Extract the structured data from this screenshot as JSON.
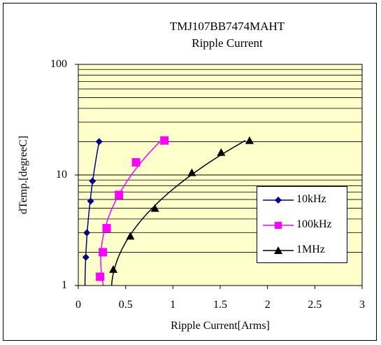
{
  "chart_data": {
    "type": "line",
    "title": "TMJ107BB7474MAHT",
    "subtitle": "Ripple Current",
    "xlabel": "Ripple Current[Arms]",
    "ylabel": "dTemp.[degreeC]",
    "xlim": [
      0,
      3
    ],
    "ylim": [
      1,
      100
    ],
    "yscale": "log",
    "xticks": [
      "0",
      "0.5",
      "1",
      "1.5",
      "2",
      "2.5",
      "3"
    ],
    "yticks": [
      "1",
      "10",
      "100"
    ],
    "grid": true,
    "legend_position": "right",
    "plot_background": "#ffffcc",
    "series": [
      {
        "name": "10kHz",
        "color": "#000080",
        "marker": "diamond",
        "x": [
          0.08,
          0.09,
          0.13,
          0.15,
          0.22
        ],
        "y": [
          1.8,
          3.0,
          5.8,
          8.8,
          20.0
        ]
      },
      {
        "name": "100kHz",
        "color": "#ff00ff",
        "marker": "square",
        "x": [
          0.23,
          0.26,
          0.3,
          0.43,
          0.61,
          0.91
        ],
        "y": [
          1.2,
          2.0,
          3.3,
          6.6,
          13.0,
          20.5
        ]
      },
      {
        "name": "1MHz",
        "color": "#000000",
        "marker": "triangle",
        "x": [
          0.37,
          0.55,
          0.81,
          1.2,
          1.51,
          1.81
        ],
        "y": [
          1.4,
          2.8,
          5.0,
          10.5,
          16.0,
          20.5
        ]
      }
    ]
  }
}
